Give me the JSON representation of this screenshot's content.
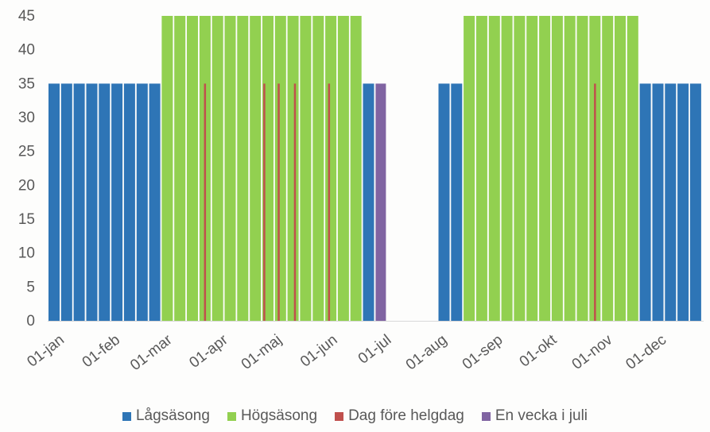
{
  "chart_data": {
    "type": "bar",
    "title": "",
    "xlabel": "",
    "ylabel": "",
    "ylim": [
      0,
      45
    ],
    "yticks": [
      0,
      5,
      10,
      15,
      20,
      25,
      30,
      35,
      40,
      45
    ],
    "x_tick_labels": [
      "01-jan",
      "01-feb",
      "01-mar",
      "01-apr",
      "01-maj",
      "01-jun",
      "01-jul",
      "01-aug",
      "01-sep",
      "01-okt",
      "01-nov",
      "01-dec"
    ],
    "grid": false,
    "legend_position": "bottom",
    "legend": [
      {
        "name": "Lågsäsong",
        "color": "#2e75b6"
      },
      {
        "name": "Högsäsong",
        "color": "#92d050"
      },
      {
        "name": "Dag före helgdag",
        "color": "#c0504d"
      },
      {
        "name": "En vecka i juli",
        "color": "#8064a2"
      }
    ],
    "series": [
      {
        "name": "Lågsäsong",
        "color": "#2e75b6",
        "points": [
          {
            "x": "2024-01-01",
            "y": 35
          },
          {
            "x": "2024-01-08",
            "y": 35
          },
          {
            "x": "2024-01-15",
            "y": 35
          },
          {
            "x": "2024-01-22",
            "y": 35
          },
          {
            "x": "2024-01-29",
            "y": 35
          },
          {
            "x": "2024-02-05",
            "y": 35
          },
          {
            "x": "2024-02-12",
            "y": 35
          },
          {
            "x": "2024-02-19",
            "y": 35
          },
          {
            "x": "2024-02-26",
            "y": 35
          },
          {
            "x": "2024-06-24",
            "y": 35
          },
          {
            "x": "2024-08-05",
            "y": 35
          },
          {
            "x": "2024-08-12",
            "y": 35
          },
          {
            "x": "2024-11-25",
            "y": 35
          },
          {
            "x": "2024-12-02",
            "y": 35
          },
          {
            "x": "2024-12-09",
            "y": 35
          },
          {
            "x": "2024-12-16",
            "y": 35
          },
          {
            "x": "2024-12-23",
            "y": 35
          }
        ]
      },
      {
        "name": "Högsäsong",
        "color": "#92d050",
        "points": [
          {
            "x": "2024-03-04",
            "y": 45
          },
          {
            "x": "2024-03-11",
            "y": 45
          },
          {
            "x": "2024-03-18",
            "y": 45
          },
          {
            "x": "2024-03-25",
            "y": 45
          },
          {
            "x": "2024-04-01",
            "y": 45
          },
          {
            "x": "2024-04-08",
            "y": 45
          },
          {
            "x": "2024-04-15",
            "y": 45
          },
          {
            "x": "2024-04-22",
            "y": 45
          },
          {
            "x": "2024-04-29",
            "y": 45
          },
          {
            "x": "2024-05-06",
            "y": 45
          },
          {
            "x": "2024-05-13",
            "y": 45
          },
          {
            "x": "2024-05-20",
            "y": 45
          },
          {
            "x": "2024-05-27",
            "y": 45
          },
          {
            "x": "2024-06-03",
            "y": 45
          },
          {
            "x": "2024-06-10",
            "y": 45
          },
          {
            "x": "2024-06-17",
            "y": 45
          },
          {
            "x": "2024-08-19",
            "y": 45
          },
          {
            "x": "2024-08-26",
            "y": 45
          },
          {
            "x": "2024-09-02",
            "y": 45
          },
          {
            "x": "2024-09-09",
            "y": 45
          },
          {
            "x": "2024-09-16",
            "y": 45
          },
          {
            "x": "2024-09-23",
            "y": 45
          },
          {
            "x": "2024-09-30",
            "y": 45
          },
          {
            "x": "2024-10-07",
            "y": 45
          },
          {
            "x": "2024-10-14",
            "y": 45
          },
          {
            "x": "2024-10-21",
            "y": 45
          },
          {
            "x": "2024-10-28",
            "y": 45
          },
          {
            "x": "2024-11-04",
            "y": 45
          },
          {
            "x": "2024-11-11",
            "y": 45
          },
          {
            "x": "2024-11-18",
            "y": 45
          }
        ]
      },
      {
        "name": "Dag före helgdag",
        "color": "#c0504d",
        "points": [
          {
            "x": "2024-03-28",
            "y": 35
          },
          {
            "x": "2024-04-30",
            "y": 35
          },
          {
            "x": "2024-05-08",
            "y": 35
          },
          {
            "x": "2024-05-17",
            "y": 35
          },
          {
            "x": "2024-06-05",
            "y": 35
          },
          {
            "x": "2024-10-31",
            "y": 35
          }
        ]
      },
      {
        "name": "En vecka i juli",
        "color": "#8064a2",
        "points": [
          {
            "x": "2024-07-01",
            "y": 35
          }
        ]
      }
    ]
  }
}
